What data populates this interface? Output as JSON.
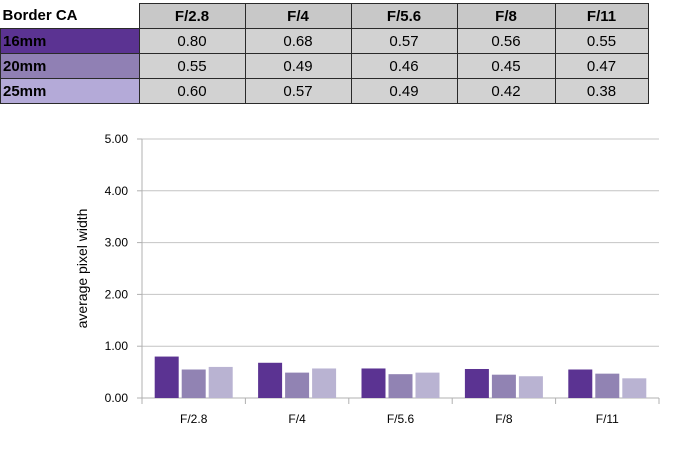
{
  "table": {
    "corner_label": "Border CA",
    "columns": [
      "F/2.8",
      "F/4",
      "F/5.6",
      "F/8",
      "F/11"
    ],
    "rows": [
      {
        "label": "16mm",
        "values": [
          "0.80",
          "0.68",
          "0.57",
          "0.56",
          "0.55"
        ],
        "color": "#5b3392"
      },
      {
        "label": "20mm",
        "values": [
          "0.55",
          "0.49",
          "0.46",
          "0.45",
          "0.47"
        ],
        "color": "#9080b4"
      },
      {
        "label": "25mm",
        "values": [
          "0.60",
          "0.57",
          "0.49",
          "0.42",
          "0.38"
        ],
        "color": "#b4aad8"
      }
    ]
  },
  "chart_data": {
    "type": "bar",
    "categories": [
      "F/2.8",
      "F/4",
      "F/5.6",
      "F/8",
      "F/11"
    ],
    "series": [
      {
        "name": "16mm",
        "values": [
          0.8,
          0.68,
          0.57,
          0.56,
          0.55
        ],
        "color": "#5b3392"
      },
      {
        "name": "20mm",
        "values": [
          0.55,
          0.49,
          0.46,
          0.45,
          0.47
        ],
        "color": "#9183b3"
      },
      {
        "name": "25mm",
        "values": [
          0.6,
          0.57,
          0.49,
          0.42,
          0.38
        ],
        "color": "#b9b3d2"
      }
    ],
    "ylabel": "average pixel width",
    "xlabel": "",
    "ylim": [
      0,
      5
    ],
    "yticks": [
      "0.00",
      "1.00",
      "2.00",
      "3.00",
      "4.00",
      "5.00"
    ],
    "grid": true
  }
}
